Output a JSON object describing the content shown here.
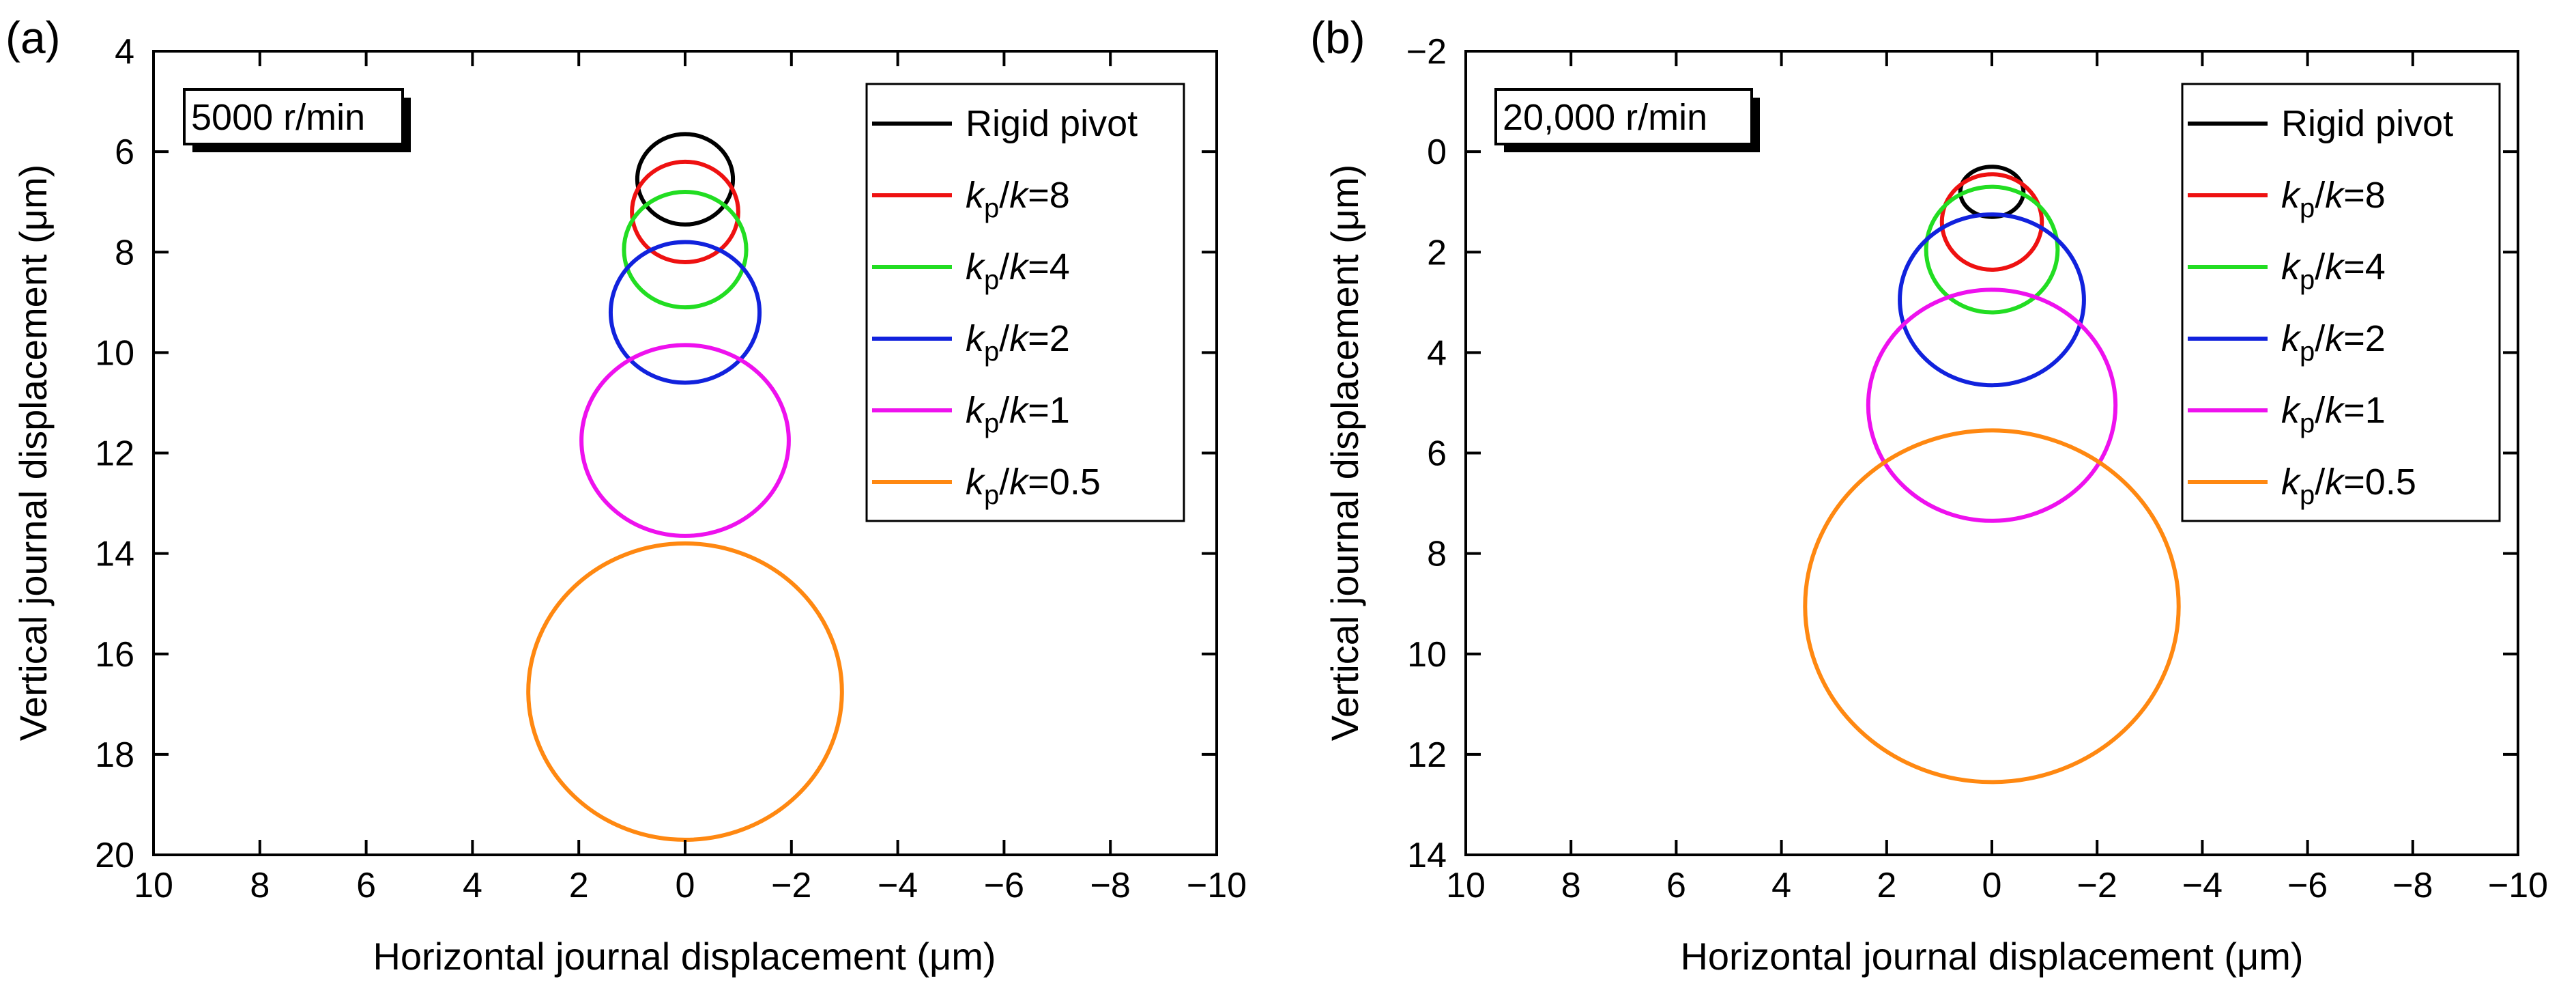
{
  "chart_data": [
    {
      "type": "line",
      "panel_label": "(a)",
      "annotation": "5000 r/min",
      "xlabel": "Horizontal journal displacement (μm)",
      "ylabel": "Vertical journal displacement (μm)",
      "xlim": [
        10,
        -10
      ],
      "ylim": [
        4,
        20
      ],
      "y_inverted": true,
      "x_reversed": true,
      "xticks": [
        10,
        8,
        6,
        4,
        2,
        0,
        -2,
        -4,
        -6,
        -8,
        -10
      ],
      "xtick_labels": [
        "10",
        "8",
        "6",
        "4",
        "2",
        "0",
        "−2",
        "−4",
        "−6",
        "−8",
        "−10"
      ],
      "yticks": [
        4,
        6,
        8,
        10,
        12,
        14,
        16,
        18,
        20
      ],
      "ytick_labels": [
        "4",
        "6",
        "8",
        "10",
        "12",
        "14",
        "16",
        "18",
        "20"
      ],
      "legend_position": "top-right",
      "series": [
        {
          "name": "Rigid pivot",
          "color": "#000000",
          "center": [
            0,
            6.55
          ],
          "radius_x": 0.9,
          "radius_y": 0.9
        },
        {
          "name": "kp/k=8",
          "color": "#ee1111",
          "center": [
            0,
            7.2
          ],
          "radius_x": 1.0,
          "radius_y": 1.0
        },
        {
          "name": "kp/k=4",
          "color": "#22dd22",
          "center": [
            0,
            7.95
          ],
          "radius_x": 1.15,
          "radius_y": 1.15
        },
        {
          "name": "kp/k=2",
          "color": "#1122dd",
          "center": [
            0,
            9.2
          ],
          "radius_x": 1.4,
          "radius_y": 1.4
        },
        {
          "name": "kp/k=1",
          "color": "#ee11ee",
          "center": [
            0,
            11.75
          ],
          "radius_x": 1.95,
          "radius_y": 1.9
        },
        {
          "name": "kp/k=0.5",
          "color": "#ff8811",
          "center": [
            0,
            16.75
          ],
          "radius_x": 2.95,
          "radius_y": 2.95
        }
      ]
    },
    {
      "type": "line",
      "panel_label": "(b)",
      "annotation": "20,000 r/min",
      "xlabel": "Horizontal journal displacement (μm)",
      "ylabel": "Vertical journal displacement (μm)",
      "xlim": [
        10,
        -10
      ],
      "ylim": [
        -2,
        14
      ],
      "y_inverted": true,
      "x_reversed": true,
      "xticks": [
        10,
        8,
        6,
        4,
        2,
        0,
        -2,
        -4,
        -6,
        -8,
        -10
      ],
      "xtick_labels": [
        "10",
        "8",
        "6",
        "4",
        "2",
        "0",
        "−2",
        "−4",
        "−6",
        "−8",
        "−10"
      ],
      "yticks": [
        -2,
        0,
        2,
        4,
        6,
        8,
        10,
        12,
        14
      ],
      "ytick_labels": [
        "−2",
        "0",
        "2",
        "4",
        "6",
        "8",
        "10",
        "12",
        "14"
      ],
      "legend_position": "top-right",
      "series": [
        {
          "name": "Rigid pivot",
          "color": "#000000",
          "center": [
            0,
            0.8
          ],
          "radius_x": 0.6,
          "radius_y": 0.5
        },
        {
          "name": "kp/k=8",
          "color": "#ee1111",
          "center": [
            0,
            1.4
          ],
          "radius_x": 0.95,
          "radius_y": 0.95
        },
        {
          "name": "kp/k=4",
          "color": "#22dd22",
          "center": [
            0,
            1.95
          ],
          "radius_x": 1.25,
          "radius_y": 1.25
        },
        {
          "name": "kp/k=2",
          "color": "#1122dd",
          "center": [
            0,
            2.95
          ],
          "radius_x": 1.75,
          "radius_y": 1.7
        },
        {
          "name": "kp/k=1",
          "color": "#ee11ee",
          "center": [
            0,
            5.05
          ],
          "radius_x": 2.35,
          "radius_y": 2.3
        },
        {
          "name": "kp/k=0.5",
          "color": "#ff8811",
          "center": [
            0,
            9.05
          ],
          "radius_x": 3.55,
          "radius_y": 3.5
        }
      ]
    }
  ]
}
